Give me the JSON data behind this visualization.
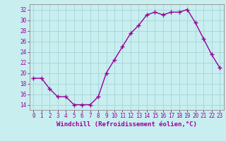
{
  "x": [
    0,
    1,
    2,
    3,
    4,
    5,
    6,
    7,
    8,
    9,
    10,
    11,
    12,
    13,
    14,
    15,
    16,
    17,
    18,
    19,
    20,
    21,
    22,
    23
  ],
  "y": [
    19,
    19,
    17,
    15.5,
    15.5,
    14,
    14,
    14,
    15.5,
    20,
    22.5,
    25,
    27.5,
    29,
    31,
    31.5,
    31,
    31.5,
    31.5,
    32,
    29.5,
    26.5,
    23.5,
    21
  ],
  "line_color": "#990099",
  "marker": "+",
  "markersize": 4,
  "linewidth": 1.0,
  "bg_color": "#c8eef0",
  "grid_color": "#aad8dc",
  "xlabel": "Windchill (Refroidissement éolien,°C)",
  "xlim": [
    -0.5,
    23.5
  ],
  "ylim": [
    13,
    33
  ],
  "yticks": [
    14,
    16,
    18,
    20,
    22,
    24,
    26,
    28,
    30,
    32
  ],
  "xticks": [
    0,
    1,
    2,
    3,
    4,
    5,
    6,
    7,
    8,
    9,
    10,
    11,
    12,
    13,
    14,
    15,
    16,
    17,
    18,
    19,
    20,
    21,
    22,
    23
  ],
  "tick_color": "#990099",
  "tick_fontsize": 5.5,
  "xlabel_fontsize": 6.5,
  "border_color": "#999999"
}
